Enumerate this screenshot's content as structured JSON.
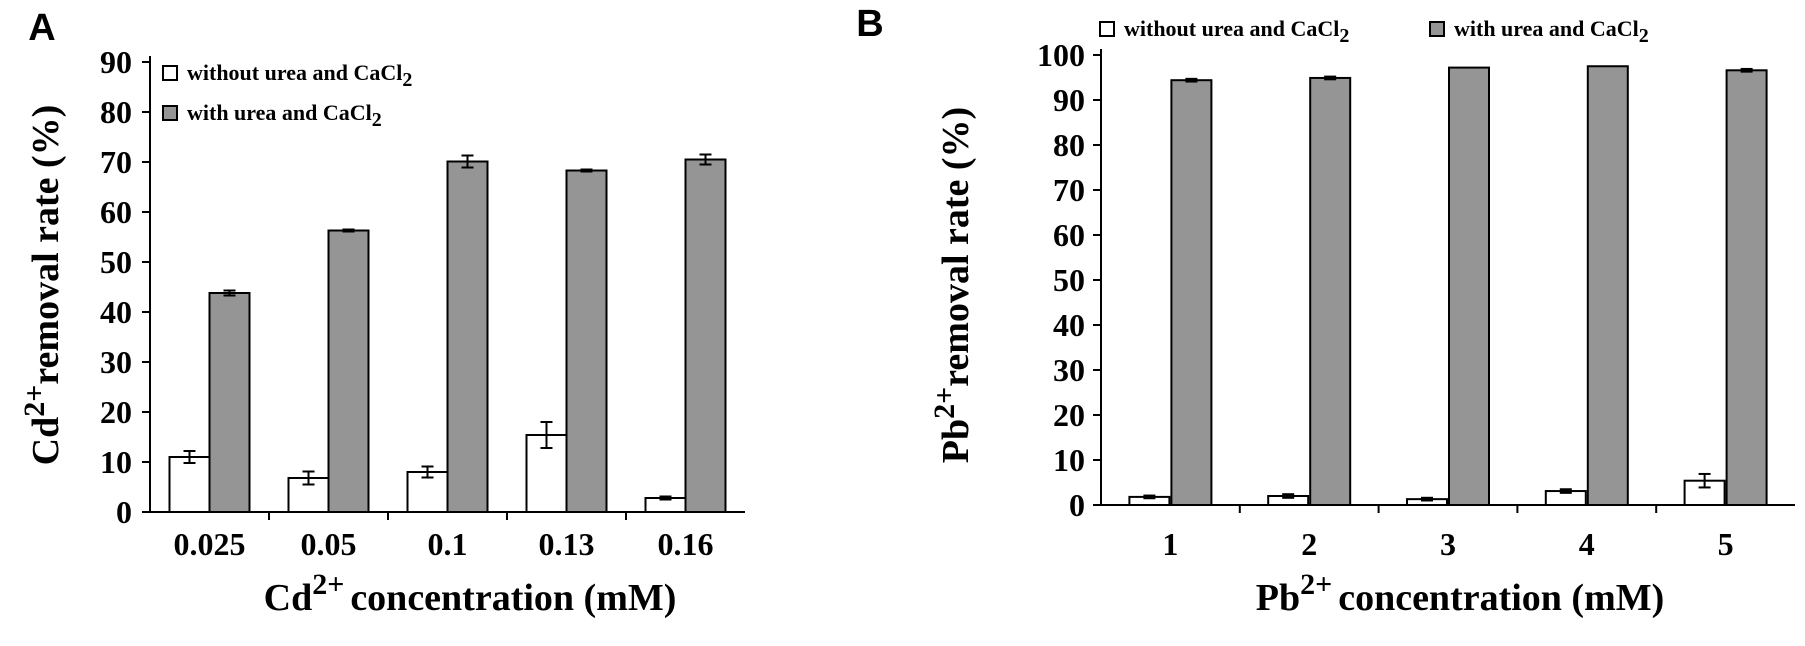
{
  "chart_data": [
    {
      "panel": "A",
      "type": "bar",
      "ylabel": {
        "prefix": "Cd",
        "sup": "2+",
        "suffix": "removal rate (%)"
      },
      "xlabel": {
        "prefix": "Cd",
        "sup": "2+",
        "suffix": "concentration (mM)"
      },
      "ylim": [
        0,
        90
      ],
      "yticks": [
        0,
        10,
        20,
        30,
        40,
        50,
        60,
        70,
        80,
        90
      ],
      "categories": [
        "0.025",
        "0.05",
        "0.1",
        "0.13",
        "0.16"
      ],
      "legend_position": "top-left",
      "series": [
        {
          "name": "without urea and CaCl",
          "subscript": "2",
          "color": "#ffffff",
          "values": [
            11,
            6.8,
            8,
            15.4,
            2.8
          ],
          "errors": [
            1.2,
            1.3,
            1.1,
            2.6,
            0.3
          ]
        },
        {
          "name": "with urea and CaCl",
          "subscript": "2",
          "color": "#959595",
          "values": [
            43.8,
            56.3,
            70.1,
            68.3,
            70.5
          ],
          "errors": [
            0.5,
            0.2,
            1.2,
            0.2,
            1.0
          ]
        }
      ]
    },
    {
      "panel": "B",
      "type": "bar",
      "ylabel": {
        "prefix": "Pb",
        "sup": "2+",
        "suffix": "removal rate (%)"
      },
      "xlabel": {
        "prefix": "Pb",
        "sup": "2+",
        "suffix": "concentration (mM)"
      },
      "ylim": [
        0,
        100
      ],
      "yticks": [
        0,
        10,
        20,
        30,
        40,
        50,
        60,
        70,
        80,
        90,
        100
      ],
      "categories": [
        "1",
        "2",
        "3",
        "4",
        "5"
      ],
      "legend_position": "top",
      "series": [
        {
          "name": "without urea and CaCl",
          "subscript": "2",
          "color": "#ffffff",
          "values": [
            1.8,
            2.0,
            1.3,
            3.1,
            5.4
          ],
          "errors": [
            0.3,
            0.4,
            0.3,
            0.4,
            1.5
          ]
        },
        {
          "name": "with urea and CaCl",
          "subscript": "2",
          "color": "#959595",
          "values": [
            94.4,
            94.9,
            97.2,
            97.5,
            96.6
          ],
          "errors": [
            0.3,
            0.3,
            0.0,
            0.0,
            0.3
          ]
        }
      ]
    }
  ]
}
